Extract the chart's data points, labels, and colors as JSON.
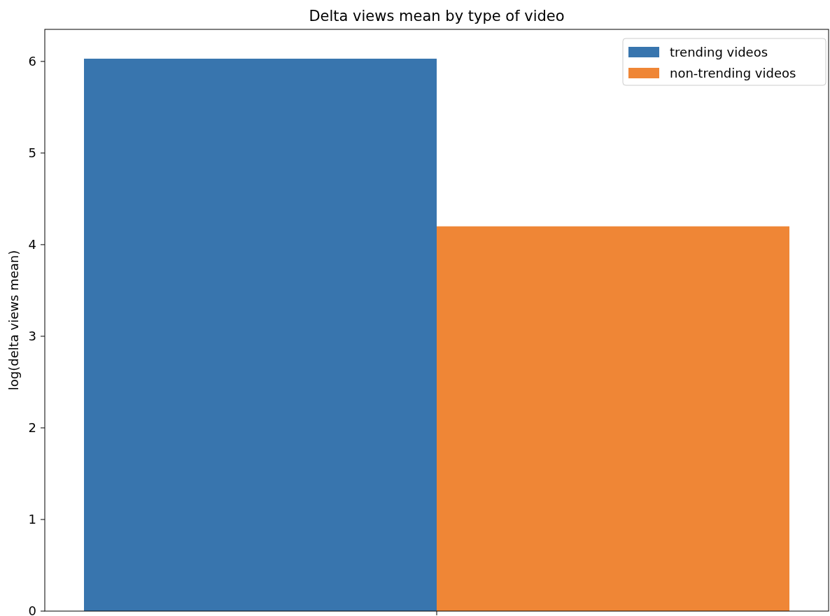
{
  "chart_data": {
    "type": "bar",
    "title": "Delta views mean by type of video",
    "ylabel": "log(delta views mean)",
    "categories": [
      null
    ],
    "series": [
      {
        "name": "trending videos",
        "color": "#3875ae",
        "values": [
          6.03
        ]
      },
      {
        "name": "non-trending videos",
        "color": "#ef8636",
        "values": [
          4.2
        ]
      }
    ],
    "ylim": [
      0,
      6.35
    ],
    "yticks": [
      0,
      1,
      2,
      3,
      4,
      5,
      6
    ],
    "grid": false,
    "legend": "top right"
  }
}
